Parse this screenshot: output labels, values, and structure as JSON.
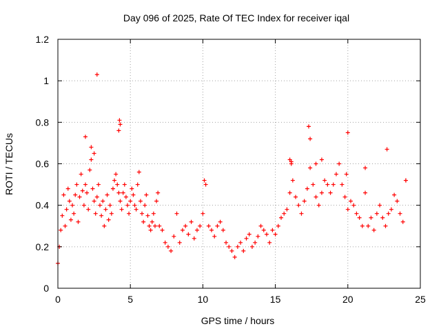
{
  "chart_data": {
    "type": "scatter",
    "title": "Day 096 of 2025, Rate Of TEC Index for receiver iqal",
    "xlabel": "GPS time / hours",
    "ylabel": "ROTI / TECUs",
    "xlim": [
      0,
      25
    ],
    "ylim": [
      0,
      1.2
    ],
    "x_ticks": [
      0,
      5,
      10,
      15,
      20,
      25
    ],
    "x_tick_labels": [
      "0",
      "5",
      "10",
      "15",
      "20",
      "25"
    ],
    "y_ticks": [
      0,
      0.2,
      0.4,
      0.6,
      0.8,
      1.0,
      1.2
    ],
    "y_tick_labels": [
      "0",
      "0.2",
      "0.4",
      "0.6",
      "0.8",
      "1",
      "1.2"
    ],
    "grid": true,
    "marker": "+",
    "series": [
      {
        "name": "ROTI",
        "color": "#ff0000",
        "x": [
          0.0,
          0.1,
          0.2,
          0.3,
          0.4,
          0.5,
          0.6,
          0.7,
          0.8,
          0.9,
          1.0,
          1.1,
          1.2,
          1.3,
          1.4,
          1.5,
          1.6,
          1.7,
          1.8,
          1.9,
          2.0,
          2.1,
          2.2,
          2.3,
          2.4,
          2.5,
          2.6,
          2.7,
          2.8,
          2.9,
          3.0,
          3.1,
          3.2,
          3.3,
          3.4,
          3.5,
          3.6,
          3.7,
          3.8,
          3.9,
          4.0,
          4.1,
          4.2,
          4.3,
          4.4,
          4.5,
          4.6,
          4.7,
          4.8,
          4.9,
          5.0,
          5.1,
          5.2,
          5.3,
          5.4,
          5.5,
          5.6,
          5.7,
          5.8,
          5.9,
          6.0,
          6.1,
          6.2,
          6.3,
          6.4,
          6.5,
          6.6,
          6.7,
          6.8,
          6.9,
          7.0,
          7.2,
          7.4,
          7.6,
          7.8,
          8.0,
          8.2,
          8.4,
          8.6,
          8.8,
          9.0,
          9.2,
          9.4,
          9.6,
          9.8,
          10.0,
          10.1,
          10.2,
          10.4,
          10.6,
          10.8,
          11.0,
          11.2,
          11.4,
          11.6,
          11.8,
          12.0,
          12.2,
          12.4,
          12.6,
          12.8,
          13.0,
          13.2,
          13.4,
          13.6,
          13.8,
          14.0,
          14.2,
          14.4,
          14.6,
          14.8,
          15.0,
          15.2,
          15.4,
          15.6,
          15.8,
          16.0,
          16.1,
          16.2,
          16.4,
          16.6,
          16.8,
          17.0,
          17.2,
          17.4,
          17.6,
          17.8,
          18.0,
          18.2,
          18.4,
          18.6,
          18.8,
          19.0,
          19.2,
          19.4,
          19.6,
          19.8,
          20.0,
          20.2,
          20.4,
          20.6,
          20.8,
          21.0,
          21.2,
          21.4,
          21.6,
          21.8,
          22.0,
          22.2,
          22.4,
          22.6,
          22.8,
          23.0,
          23.2,
          23.4,
          23.6,
          23.8,
          24.0,
          2.7,
          4.25,
          4.2,
          4.3,
          1.9,
          2.3,
          2.5,
          20.0,
          17.3,
          17.4,
          22.7,
          16.0,
          16.1,
          21.2,
          24.0,
          19.9,
          18.2,
          17.8
        ],
        "y": [
          0.12,
          0.2,
          0.28,
          0.35,
          0.45,
          0.3,
          0.38,
          0.48,
          0.42,
          0.33,
          0.4,
          0.36,
          0.45,
          0.5,
          0.32,
          0.44,
          0.55,
          0.47,
          0.4,
          0.5,
          0.46,
          0.38,
          0.57,
          0.62,
          0.48,
          0.42,
          0.36,
          0.44,
          0.5,
          0.4,
          0.35,
          0.42,
          0.3,
          0.38,
          0.45,
          0.33,
          0.4,
          0.36,
          0.48,
          0.52,
          0.55,
          0.5,
          0.46,
          0.42,
          0.38,
          0.46,
          0.5,
          0.44,
          0.4,
          0.36,
          0.42,
          0.48,
          0.45,
          0.4,
          0.38,
          0.5,
          0.56,
          0.42,
          0.36,
          0.32,
          0.4,
          0.45,
          0.35,
          0.3,
          0.28,
          0.32,
          0.36,
          0.3,
          0.42,
          0.46,
          0.3,
          0.28,
          0.22,
          0.2,
          0.18,
          0.25,
          0.36,
          0.22,
          0.28,
          0.3,
          0.26,
          0.32,
          0.24,
          0.28,
          0.3,
          0.36,
          0.52,
          0.5,
          0.3,
          0.28,
          0.25,
          0.3,
          0.32,
          0.28,
          0.22,
          0.2,
          0.18,
          0.15,
          0.2,
          0.22,
          0.18,
          0.24,
          0.26,
          0.2,
          0.22,
          0.25,
          0.3,
          0.28,
          0.26,
          0.22,
          0.28,
          0.26,
          0.3,
          0.34,
          0.36,
          0.38,
          0.46,
          0.6,
          0.52,
          0.44,
          0.4,
          0.36,
          0.42,
          0.48,
          0.58,
          0.5,
          0.44,
          0.4,
          0.46,
          0.52,
          0.5,
          0.46,
          0.5,
          0.55,
          0.6,
          0.5,
          0.44,
          0.38,
          0.42,
          0.4,
          0.36,
          0.34,
          0.3,
          0.46,
          0.3,
          0.34,
          0.28,
          0.36,
          0.4,
          0.34,
          0.3,
          0.36,
          0.38,
          0.45,
          0.42,
          0.36,
          0.32,
          0.52,
          1.03,
          0.81,
          0.76,
          0.79,
          0.73,
          0.68,
          0.65,
          0.75,
          0.78,
          0.72,
          0.67,
          0.62,
          0.61,
          0.58,
          0.52,
          0.55,
          0.62,
          0.6
        ]
      }
    ]
  }
}
